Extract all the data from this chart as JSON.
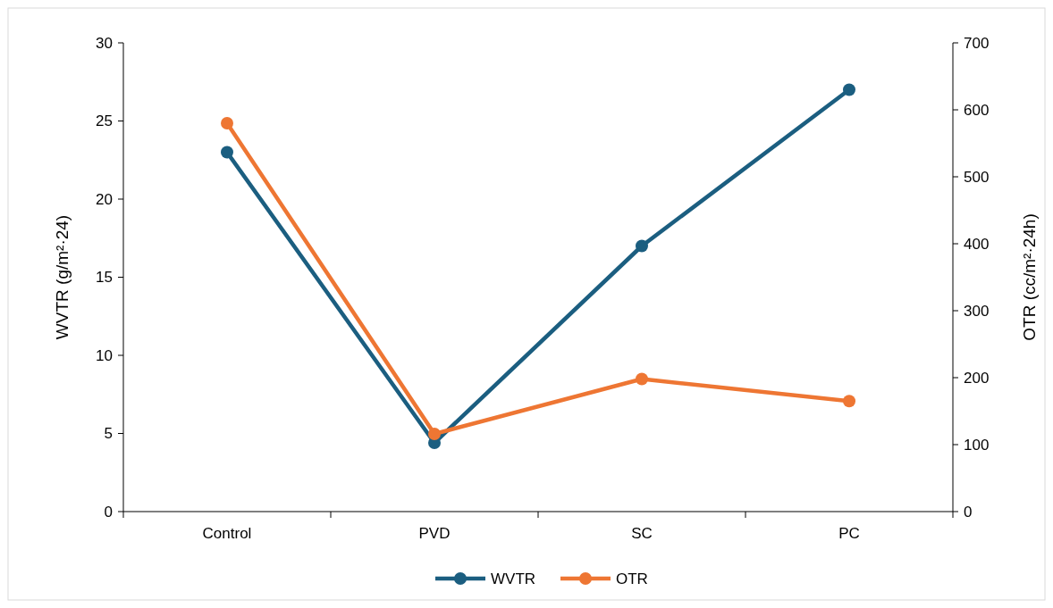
{
  "chart_data": {
    "type": "line",
    "categories": [
      "Control",
      "PVD",
      "SC",
      "PC"
    ],
    "ylabel": "WVTR (g/m²·24)",
    "y2label": "OTR (cc/m²·24h)",
    "ylim": [
      0,
      30
    ],
    "yticks": [
      0,
      5,
      10,
      15,
      20,
      25,
      30
    ],
    "y2lim": [
      0,
      700
    ],
    "y2ticks": [
      0,
      100,
      200,
      300,
      400,
      500,
      600,
      700
    ],
    "series": [
      {
        "name": "WVTR",
        "color": "#1b5e80",
        "values": [
          23,
          4.4,
          17,
          27
        ]
      },
      {
        "name": "OTR",
        "color": "#ee7633",
        "axis": "y2",
        "values": [
          580,
          116,
          198,
          165
        ]
      }
    ],
    "marker": "circle",
    "line_style": "solid",
    "legend": "bottom",
    "grid": false
  }
}
